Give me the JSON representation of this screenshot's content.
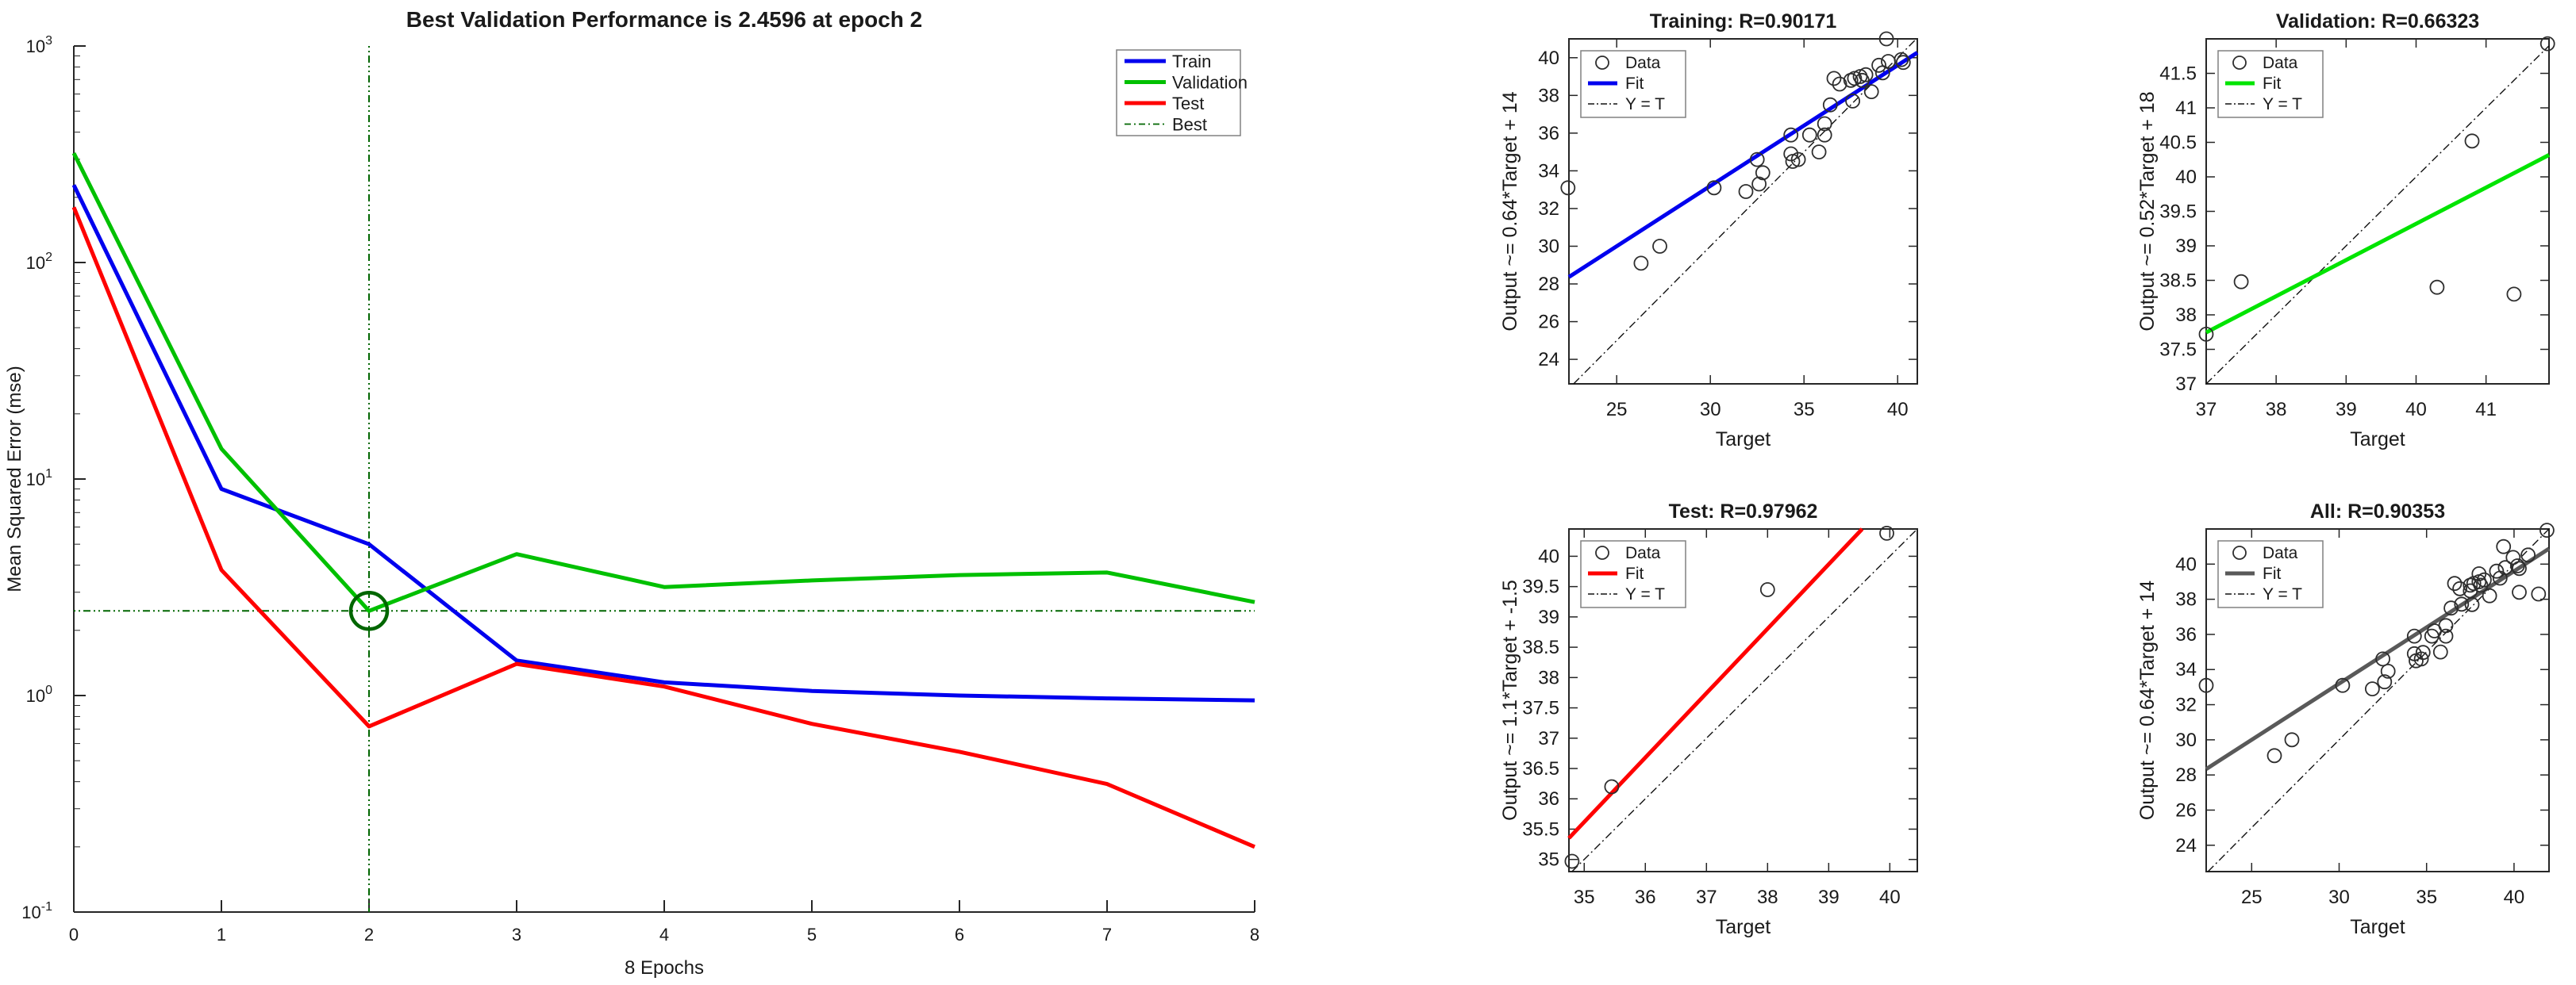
{
  "app": {
    "kind": "MATLAB neural-network training figures"
  },
  "chart_data": [
    {
      "id": "performance",
      "type": "line",
      "title": "Best Validation Performance is 2.4596 at epoch 2",
      "xlabel": "8 Epochs",
      "ylabel": "Mean Squared Error  (mse)",
      "x": [
        0,
        1,
        2,
        3,
        4,
        5,
        6,
        7,
        8
      ],
      "xlim": [
        0,
        8
      ],
      "xticks": [
        0,
        1,
        2,
        3,
        4,
        5,
        6,
        7,
        8
      ],
      "yscale": "log",
      "ylim": [
        0.1,
        1000
      ],
      "ytick_exponents": [
        3,
        2,
        1,
        0,
        -1
      ],
      "grid": false,
      "legend_position": "top-right",
      "series": [
        {
          "name": "Train",
          "color": "#0000ee",
          "values": [
            228,
            9,
            5,
            1.45,
            1.15,
            1.05,
            1.0,
            0.97,
            0.95
          ]
        },
        {
          "name": "Validation",
          "color": "#00c000",
          "values": [
            320,
            13.8,
            2.4596,
            4.5,
            3.17,
            3.4,
            3.6,
            3.7,
            2.7
          ]
        },
        {
          "name": "Test",
          "color": "#ff0000",
          "values": [
            180,
            3.8,
            0.72,
            1.4,
            1.1,
            0.74,
            0.55,
            0.39,
            0.2
          ]
        }
      ],
      "best": {
        "label": "Best",
        "epoch": 2,
        "value": 2.4596,
        "color": "#006600"
      },
      "legend": [
        "Train",
        "Validation",
        "Test",
        "Best"
      ]
    },
    {
      "id": "training",
      "type": "scatter",
      "title": "Training: R=0.90171",
      "xlabel": "Target",
      "ylabel": "Output ~= 0.64*Target + 14",
      "xlim": [
        22.45,
        41.05
      ],
      "ylim": [
        22.7,
        41.0
      ],
      "xticks": [
        25,
        30,
        35,
        40
      ],
      "yticks": [
        24,
        26,
        28,
        30,
        32,
        34,
        36,
        38,
        40
      ],
      "fit": {
        "slope": 0.64,
        "intercept": 14,
        "color": "#0000ee"
      },
      "identity_label": "Y = T",
      "legend": [
        "Data",
        "Fit",
        "Y = T"
      ],
      "legend_position": "top-left",
      "points": [
        [
          22.4,
          33.1
        ],
        [
          26.3,
          29.1
        ],
        [
          27.3,
          30.0
        ],
        [
          30.2,
          33.1
        ],
        [
          31.9,
          32.9
        ],
        [
          32.5,
          34.6
        ],
        [
          32.6,
          33.3
        ],
        [
          32.8,
          33.9
        ],
        [
          34.3,
          35.9
        ],
        [
          34.3,
          34.9
        ],
        [
          34.4,
          34.5
        ],
        [
          34.7,
          34.6
        ],
        [
          35.3,
          35.9
        ],
        [
          35.8,
          35.0
        ],
        [
          36.1,
          35.9
        ],
        [
          36.1,
          36.5
        ],
        [
          36.4,
          37.5
        ],
        [
          36.6,
          38.9
        ],
        [
          36.9,
          38.6
        ],
        [
          37.5,
          38.8
        ],
        [
          37.6,
          37.7
        ],
        [
          37.7,
          38.9
        ],
        [
          38.0,
          39.0
        ],
        [
          38.1,
          38.8
        ],
        [
          38.3,
          39.1
        ],
        [
          38.6,
          38.2
        ],
        [
          39.0,
          39.6
        ],
        [
          39.2,
          39.2
        ],
        [
          39.4,
          41.0
        ],
        [
          39.5,
          39.8
        ],
        [
          40.2,
          39.9
        ],
        [
          40.3,
          39.75
        ]
      ]
    },
    {
      "id": "validation",
      "type": "scatter",
      "title": "Validation: R=0.66323",
      "xlabel": "Target",
      "ylabel": "Output ~= 0.52*Target + 18",
      "xlim": [
        37,
        41.9
      ],
      "ylim": [
        37,
        42.0
      ],
      "xticks": [
        37,
        38,
        39,
        40,
        41
      ],
      "yticks": [
        37,
        37.5,
        38,
        38.5,
        39,
        39.5,
        40,
        40.5,
        41,
        41.5
      ],
      "fit": {
        "slope": 0.525,
        "intercept": 18.32,
        "color": "#00e400"
      },
      "identity_label": "Y = T",
      "legend": [
        "Data",
        "Fit",
        "Y = T"
      ],
      "legend_position": "top-left",
      "points": [
        [
          37.0,
          37.72
        ],
        [
          37.5,
          38.48
        ],
        [
          40.3,
          38.4
        ],
        [
          40.8,
          40.52
        ],
        [
          41.4,
          38.3
        ],
        [
          41.88,
          41.93
        ]
      ]
    },
    {
      "id": "test",
      "type": "scatter",
      "title": "Test: R=0.97962",
      "xlabel": "Target",
      "ylabel": "Output ~= 1.1*Target + -1.5",
      "xlim": [
        34.75,
        40.45
      ],
      "ylim": [
        34.8,
        40.45
      ],
      "xticks": [
        35,
        36,
        37,
        38,
        39,
        40
      ],
      "yticks": [
        35,
        35.5,
        36,
        36.5,
        37,
        37.5,
        38,
        38.5,
        39,
        39.5,
        40
      ],
      "fit": {
        "slope": 1.0625,
        "intercept": -1.57,
        "color": "#ff0000"
      },
      "identity_label": "Y = T",
      "legend": [
        "Data",
        "Fit",
        "Y = T"
      ],
      "legend_position": "top-left",
      "points": [
        [
          34.8,
          34.97
        ],
        [
          35.45,
          36.2
        ],
        [
          38.0,
          39.45
        ],
        [
          39.95,
          40.38
        ]
      ]
    },
    {
      "id": "all",
      "type": "scatter",
      "title": "All: R=0.90353",
      "xlabel": "Target",
      "ylabel": "Output ~= 0.64*Target + 14",
      "xlim": [
        22.4,
        42.0
      ],
      "ylim": [
        22.5,
        42.0
      ],
      "xticks": [
        25,
        30,
        35,
        40
      ],
      "yticks": [
        24,
        26,
        28,
        30,
        32,
        34,
        36,
        38,
        40
      ],
      "fit": {
        "slope": 0.64,
        "intercept": 14,
        "color": "#595959"
      },
      "identity_label": "Y = T",
      "legend": [
        "Data",
        "Fit",
        "Y = T"
      ],
      "legend_position": "top-left",
      "points": [
        [
          22.4,
          33.1
        ],
        [
          26.3,
          29.1
        ],
        [
          27.3,
          30.0
        ],
        [
          30.2,
          33.1
        ],
        [
          31.9,
          32.9
        ],
        [
          32.5,
          34.6
        ],
        [
          32.6,
          33.3
        ],
        [
          32.8,
          33.9
        ],
        [
          34.3,
          35.9
        ],
        [
          34.3,
          34.9
        ],
        [
          34.4,
          34.5
        ],
        [
          34.7,
          34.6
        ],
        [
          35.3,
          35.9
        ],
        [
          35.8,
          35.0
        ],
        [
          36.1,
          35.9
        ],
        [
          36.1,
          36.5
        ],
        [
          36.4,
          37.5
        ],
        [
          36.6,
          38.9
        ],
        [
          36.9,
          38.6
        ],
        [
          37.5,
          38.8
        ],
        [
          37.6,
          37.7
        ],
        [
          37.7,
          38.9
        ],
        [
          38.0,
          39.0
        ],
        [
          38.1,
          38.8
        ],
        [
          38.3,
          39.1
        ],
        [
          38.6,
          38.2
        ],
        [
          39.0,
          39.6
        ],
        [
          39.2,
          39.2
        ],
        [
          39.4,
          41.0
        ],
        [
          39.5,
          39.8
        ],
        [
          40.2,
          39.9
        ],
        [
          40.3,
          39.75
        ],
        [
          37.0,
          37.72
        ],
        [
          37.5,
          38.48
        ],
        [
          40.3,
          38.4
        ],
        [
          40.8,
          40.52
        ],
        [
          41.4,
          38.3
        ],
        [
          41.88,
          41.93
        ],
        [
          34.8,
          34.97
        ],
        [
          35.45,
          36.2
        ],
        [
          38.0,
          39.45
        ],
        [
          39.95,
          40.38
        ]
      ]
    }
  ],
  "colors": {
    "train": "#0000ee",
    "validation": "#00c000",
    "test": "#ff0000",
    "best": "#006600",
    "all_fit": "#595959",
    "marker": "#2e2e2e",
    "axis": "#262626",
    "legend_border": "#808080"
  }
}
